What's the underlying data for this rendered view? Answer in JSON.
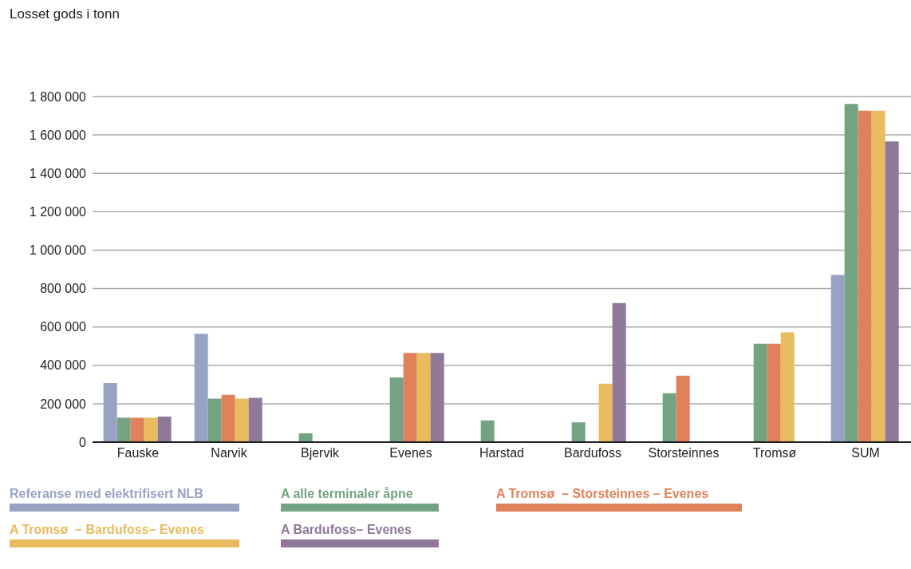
{
  "chart_data": {
    "type": "bar",
    "title": "Losset gods i tonn",
    "categories": [
      "Fauske",
      "Narvik",
      "Bjervik",
      "Evenes",
      "Harstad",
      "Bardufoss",
      "Storsteinnes",
      "Tromsø",
      "SUM"
    ],
    "series": [
      {
        "name": "Referanse med elektrifisert NLB",
        "color": "#98a3c4",
        "values": [
          308000,
          564000,
          null,
          null,
          null,
          null,
          null,
          null,
          871000
        ]
      },
      {
        "name": "A alle terminaler åpne",
        "color": "#74a381",
        "values": [
          127000,
          227000,
          46000,
          337000,
          113000,
          103000,
          255000,
          512000,
          1762000
        ]
      },
      {
        "name": "A Tromsø  – Storsteinnes – Evenes",
        "color": "#e0815a",
        "values": [
          127000,
          246000,
          null,
          465000,
          null,
          null,
          346000,
          512000,
          1726000
        ]
      },
      {
        "name": "A Tromsø  – Bardufoss– Evenes",
        "color": "#e8bb5e",
        "values": [
          127000,
          227000,
          null,
          465000,
          null,
          304000,
          null,
          572000,
          1726000
        ]
      },
      {
        "name": "A Bardufoss– Evenes",
        "color": "#8f7898",
        "values": [
          133000,
          231000,
          null,
          465000,
          null,
          724000,
          null,
          null,
          1566000
        ]
      }
    ],
    "ylim": [
      0,
      1800000
    ],
    "yticks": [
      0,
      {
        "value": 200000,
        "label": "200 000"
      },
      {
        "value": 400000,
        "label": "400 000"
      },
      {
        "value": 600000,
        "label": "600 000"
      },
      {
        "value": 800000,
        "label": "800 000"
      },
      {
        "value": 1000000,
        "label": "1 000 000"
      },
      {
        "value": 1200000,
        "label": "1 200 000"
      },
      {
        "value": 1400000,
        "label": "1 400 000"
      },
      {
        "value": 1600000,
        "label": "1 600 000"
      },
      {
        "value": 1800000,
        "label": "1 800 000"
      }
    ],
    "grid": "y",
    "legend": "bottom"
  }
}
